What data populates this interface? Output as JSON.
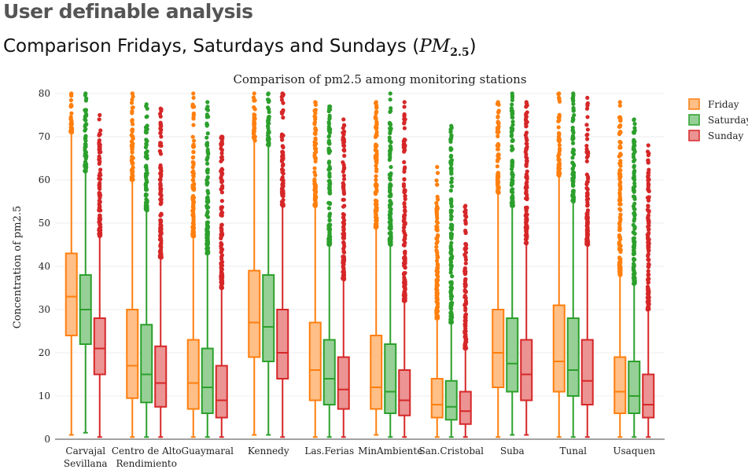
{
  "page": {
    "heading": "User definable analysis",
    "section_title_prefix": "Comparison Fridays, Saturdays and Sundays (",
    "section_title_math": "PM",
    "section_title_sub": "2.5",
    "section_title_suffix": ")"
  },
  "chart_data": {
    "type": "box",
    "title": "Comparison of pm2.5 among monitoring stations",
    "xlabel": "",
    "ylabel": "Concentration of pm2.5",
    "ylim": [
      0,
      80
    ],
    "yticks": [
      0,
      10,
      20,
      30,
      40,
      50,
      60,
      70,
      80
    ],
    "grid": true,
    "legend_position": "top-right",
    "categories": [
      [
        "Carvajal",
        "Sevillana"
      ],
      [
        "Centro de Alto",
        "Rendimiento"
      ],
      [
        "Guaymaral"
      ],
      [
        "Kennedy"
      ],
      [
        "Las.Ferias"
      ],
      [
        "MinAmbiente"
      ],
      [
        "San.Cristobal"
      ],
      [
        "Suba"
      ],
      [
        "Tunal"
      ],
      [
        "Usaquen"
      ]
    ],
    "series": [
      {
        "name": "Friday",
        "color": "#ff7f0e",
        "fill": "#ffbf87",
        "boxes": [
          {
            "min": 1,
            "q1": 24,
            "median": 33,
            "q3": 43,
            "max": 71,
            "outliers_from": 71,
            "outliers_to": 80
          },
          {
            "min": 0.5,
            "q1": 9.5,
            "median": 17,
            "q3": 30,
            "max": 60,
            "outliers_from": 60,
            "outliers_to": 80
          },
          {
            "min": 0.5,
            "q1": 7,
            "median": 13,
            "q3": 23,
            "max": 47,
            "outliers_from": 47,
            "outliers_to": 80
          },
          {
            "min": 1,
            "q1": 19,
            "median": 27,
            "q3": 39,
            "max": 69,
            "outliers_from": 69,
            "outliers_to": 80
          },
          {
            "min": 0.5,
            "q1": 9,
            "median": 16,
            "q3": 27,
            "max": 54,
            "outliers_from": 54,
            "outliers_to": 78
          },
          {
            "min": 1,
            "q1": 7,
            "median": 12,
            "q3": 24,
            "max": 49,
            "outliers_from": 49,
            "outliers_to": 78
          },
          {
            "min": 0.5,
            "q1": 5,
            "median": 8,
            "q3": 14,
            "max": 28,
            "outliers_from": 28,
            "outliers_to": 63
          },
          {
            "min": 0.5,
            "q1": 12,
            "median": 20,
            "q3": 30,
            "max": 57,
            "outliers_from": 57,
            "outliers_to": 78
          },
          {
            "min": 0.5,
            "q1": 11,
            "median": 18,
            "q3": 31,
            "max": 61,
            "outliers_from": 61,
            "outliers_to": 80
          },
          {
            "min": 0.5,
            "q1": 6,
            "median": 11,
            "q3": 19,
            "max": 38,
            "outliers_from": 38,
            "outliers_to": 78
          }
        ]
      },
      {
        "name": "Saturday",
        "color": "#2ca02c",
        "fill": "#96d096",
        "boxes": [
          {
            "min": 1.5,
            "q1": 22,
            "median": 30,
            "q3": 38,
            "max": 62,
            "outliers_from": 62,
            "outliers_to": 80
          },
          {
            "min": 0.5,
            "q1": 8.5,
            "median": 15,
            "q3": 26.5,
            "max": 53,
            "outliers_from": 53,
            "outliers_to": 77.5
          },
          {
            "min": 0.5,
            "q1": 6,
            "median": 12,
            "q3": 21,
            "max": 43,
            "outliers_from": 43,
            "outliers_to": 78
          },
          {
            "min": 1,
            "q1": 18,
            "median": 26,
            "q3": 38,
            "max": 68,
            "outliers_from": 68,
            "outliers_to": 80
          },
          {
            "min": 0.5,
            "q1": 8,
            "median": 14,
            "q3": 23,
            "max": 45,
            "outliers_from": 45,
            "outliers_to": 77
          },
          {
            "min": 0.5,
            "q1": 6,
            "median": 11,
            "q3": 22,
            "max": 45,
            "outliers_from": 45,
            "outliers_to": 80
          },
          {
            "min": 0.5,
            "q1": 4.5,
            "median": 7.5,
            "q3": 13.5,
            "max": 27,
            "outliers_from": 27,
            "outliers_to": 72.5
          },
          {
            "min": 1,
            "q1": 11,
            "median": 17.5,
            "q3": 28,
            "max": 54,
            "outliers_from": 54,
            "outliers_to": 80
          },
          {
            "min": 0.5,
            "q1": 10,
            "median": 16,
            "q3": 28,
            "max": 55,
            "outliers_from": 55,
            "outliers_to": 80
          },
          {
            "min": 0.5,
            "q1": 6,
            "median": 10,
            "q3": 18,
            "max": 36,
            "outliers_from": 36,
            "outliers_to": 74
          }
        ]
      },
      {
        "name": "Sunday",
        "color": "#d62728",
        "fill": "#ec9393",
        "boxes": [
          {
            "min": 0.5,
            "q1": 15,
            "median": 21,
            "q3": 28,
            "max": 47,
            "outliers_from": 47,
            "outliers_to": 75
          },
          {
            "min": 0.5,
            "q1": 7.5,
            "median": 13,
            "q3": 21.5,
            "max": 42,
            "outliers_from": 42,
            "outliers_to": 76.5
          },
          {
            "min": 0.5,
            "q1": 5,
            "median": 9,
            "q3": 17,
            "max": 35,
            "outliers_from": 35,
            "outliers_to": 70
          },
          {
            "min": 0.5,
            "q1": 14,
            "median": 20,
            "q3": 30,
            "max": 54,
            "outliers_from": 54,
            "outliers_to": 80
          },
          {
            "min": 0.5,
            "q1": 7,
            "median": 11.5,
            "q3": 19,
            "max": 37,
            "outliers_from": 37,
            "outliers_to": 74
          },
          {
            "min": 0.5,
            "q1": 5.5,
            "median": 9,
            "q3": 16,
            "max": 32,
            "outliers_from": 32,
            "outliers_to": 78
          },
          {
            "min": 0.5,
            "q1": 3.5,
            "median": 6.5,
            "q3": 11,
            "max": 21,
            "outliers_from": 21,
            "outliers_to": 54
          },
          {
            "min": 1,
            "q1": 9,
            "median": 15,
            "q3": 23,
            "max": 45,
            "outliers_from": 45,
            "outliers_to": 78
          },
          {
            "min": 0.5,
            "q1": 8,
            "median": 13.5,
            "q3": 23,
            "max": 45,
            "outliers_from": 45,
            "outliers_to": 79
          },
          {
            "min": 0.5,
            "q1": 5,
            "median": 8,
            "q3": 15,
            "max": 30,
            "outliers_from": 30,
            "outliers_to": 68
          }
        ]
      }
    ]
  }
}
